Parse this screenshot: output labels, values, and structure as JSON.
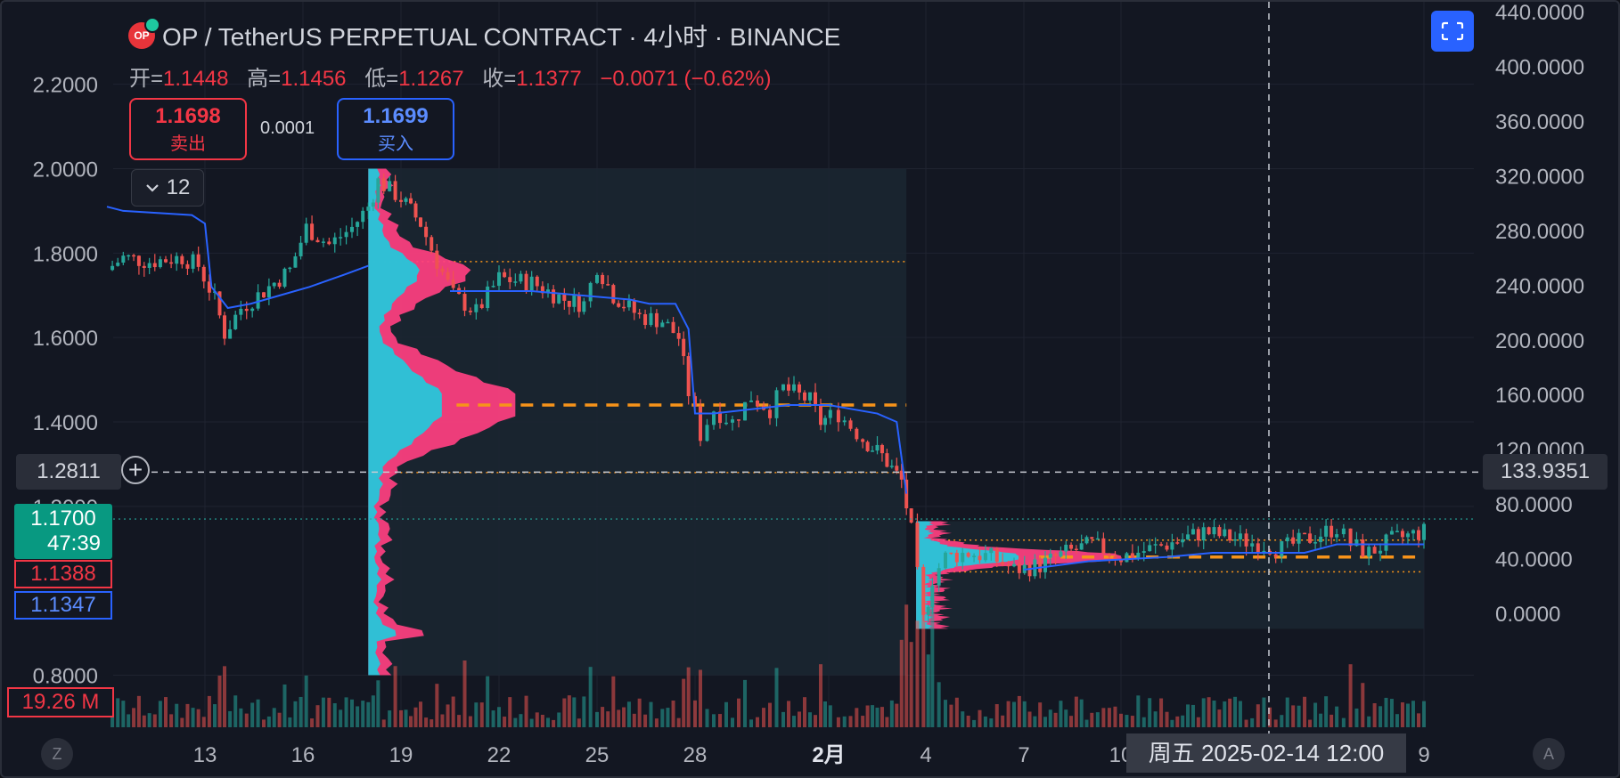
{
  "header": {
    "logo_text": "OP",
    "title": "OP / TetherUS PERPETUAL CONTRACT · 4小时 · BINANCE"
  },
  "ohlc": {
    "open_label": "开=",
    "open": "1.1448",
    "high_label": "高=",
    "high": "1.1456",
    "low_label": "低=",
    "low": "1.1267",
    "close_label": "收=",
    "close": "1.1377",
    "change": "−0.0071 (−0.62%)"
  },
  "trade": {
    "sell_price": "1.1698",
    "sell_label": "卖出",
    "spread": "0.0001",
    "buy_price": "1.1699",
    "buy_label": "买入"
  },
  "indicators_collapse": {
    "count": "12",
    "icon": "chevron-down-icon"
  },
  "fullscreen": {
    "icon": "screenshot-icon"
  },
  "crosshair": {
    "price": "1.2811",
    "right_value": "133.9351",
    "date": "周五 2025-02-14   12:00"
  },
  "price_tags": {
    "last_price": "1.1700",
    "countdown": "47:39",
    "ask": "1.1388",
    "bid": "1.1347",
    "volume": "19.26 M"
  },
  "footer": {
    "left_button": "Z",
    "right_button": "A"
  },
  "colors": {
    "background": "#131722",
    "up": "#26a69a",
    "down": "#ef5350",
    "vwap": "#2962ff",
    "poc": "#f7931a",
    "vp_up": "#26c6da",
    "vp_down": "#ff4081"
  },
  "chart_data": {
    "type": "candlestick",
    "title": "OP / TetherUS PERPETUAL CONTRACT · 4小时 · BINANCE",
    "left_axis": {
      "ticks": [
        "2.2000",
        "2.0000",
        "1.8000",
        "1.6000",
        "1.4000",
        "1.2000",
        "0.8000"
      ],
      "values": [
        2.2,
        2.0,
        1.8,
        1.6,
        1.4,
        1.2,
        0.8
      ],
      "range": [
        0.8,
        2.2
      ]
    },
    "right_axis": {
      "ticks": [
        "440.0000",
        "400.0000",
        "360.0000",
        "320.0000",
        "280.0000",
        "240.0000",
        "200.0000",
        "160.0000",
        "120.0000",
        "80.0000",
        "40.0000",
        "0.0000"
      ],
      "values": [
        440,
        400,
        360,
        320,
        280,
        240,
        200,
        160,
        120,
        80,
        40,
        0
      ]
    },
    "x_labels": [
      "13",
      "16",
      "19",
      "22",
      "25",
      "28",
      "2月",
      "4",
      "7",
      "10",
      "9"
    ],
    "price_path": [
      {
        "day": 10.0,
        "price": 1.76
      },
      {
        "day": 10.5,
        "price": 1.79
      },
      {
        "day": 11.3,
        "price": 1.78
      },
      {
        "day": 12.3,
        "price": 1.79
      },
      {
        "day": 12.8,
        "price": 1.77
      },
      {
        "day": 13.3,
        "price": 1.69
      },
      {
        "day": 13.6,
        "price": 1.61
      },
      {
        "day": 14.1,
        "price": 1.67
      },
      {
        "day": 14.8,
        "price": 1.71
      },
      {
        "day": 15.6,
        "price": 1.76
      },
      {
        "day": 16.1,
        "price": 1.86
      },
      {
        "day": 16.8,
        "price": 1.82
      },
      {
        "day": 17.5,
        "price": 1.86
      },
      {
        "day": 18.0,
        "price": 1.91
      },
      {
        "day": 18.3,
        "price": 1.97
      },
      {
        "day": 19.0,
        "price": 1.93
      },
      {
        "day": 19.6,
        "price": 1.87
      },
      {
        "day": 20.1,
        "price": 1.78
      },
      {
        "day": 20.6,
        "price": 1.7
      },
      {
        "day": 21.3,
        "price": 1.66
      },
      {
        "day": 22.0,
        "price": 1.74
      },
      {
        "day": 23.0,
        "price": 1.73
      },
      {
        "day": 24.0,
        "price": 1.69
      },
      {
        "day": 24.6,
        "price": 1.68
      },
      {
        "day": 25.0,
        "price": 1.77
      },
      {
        "day": 25.5,
        "price": 1.7
      },
      {
        "day": 26.3,
        "price": 1.65
      },
      {
        "day": 27.0,
        "price": 1.64
      },
      {
        "day": 27.5,
        "price": 1.6
      },
      {
        "day": 27.8,
        "price": 1.47
      },
      {
        "day": 28.2,
        "price": 1.37
      },
      {
        "day": 28.7,
        "price": 1.43
      },
      {
        "day": 29.4,
        "price": 1.4
      },
      {
        "day": 30.1,
        "price": 1.46
      },
      {
        "day": 30.8,
        "price": 1.43
      },
      {
        "day": 31.3,
        "price": 1.48
      },
      {
        "day": 32.3,
        "price": 1.45
      },
      {
        "day": 32.7,
        "price": 1.4
      },
      {
        "day": 33.2,
        "price": 1.42
      },
      {
        "day": 33.7,
        "price": 1.36
      },
      {
        "day": 34.1,
        "price": 1.32
      },
      {
        "day": 34.5,
        "price": 1.26
      },
      {
        "day": 34.7,
        "price": 1.14
      },
      {
        "day": 34.95,
        "price": 0.93
      },
      {
        "day": 35.2,
        "price": 1.03
      },
      {
        "day": 35.6,
        "price": 1.08
      },
      {
        "day": 36.3,
        "price": 1.09
      },
      {
        "day": 37.0,
        "price": 1.08
      },
      {
        "day": 37.7,
        "price": 1.05
      },
      {
        "day": 38.5,
        "price": 1.06
      },
      {
        "day": 39.3,
        "price": 1.09
      },
      {
        "day": 40.1,
        "price": 1.11
      },
      {
        "day": 41.0,
        "price": 1.08
      },
      {
        "day": 42.0,
        "price": 1.11
      },
      {
        "day": 42.8,
        "price": 1.14
      },
      {
        "day": 43.6,
        "price": 1.12
      },
      {
        "day": 44.5,
        "price": 1.1
      },
      {
        "day": 45.0,
        "price": 1.12
      },
      {
        "day": 45.7,
        "price": 1.15
      },
      {
        "day": 46.0,
        "price": 1.11
      },
      {
        "day": 46.4,
        "price": 1.09
      },
      {
        "day": 46.9,
        "price": 1.12
      },
      {
        "day": 47.6,
        "price": 1.14
      }
    ],
    "vwap_segments": [
      [
        {
          "day": 10.0,
          "price": 1.91
        },
        {
          "day": 10.5,
          "price": 1.9
        },
        {
          "day": 12.6,
          "price": 1.89
        },
        {
          "day": 13.0,
          "price": 1.87
        },
        {
          "day": 13.2,
          "price": 1.72
        },
        {
          "day": 13.7,
          "price": 1.67
        },
        {
          "day": 14.4,
          "price": 1.68
        },
        {
          "day": 15.3,
          "price": 1.7
        },
        {
          "day": 16.2,
          "price": 1.72
        },
        {
          "day": 17.3,
          "price": 1.75
        },
        {
          "day": 18.0,
          "price": 1.77
        }
      ],
      [
        {
          "day": 20.5,
          "price": 1.71
        },
        {
          "day": 23.0,
          "price": 1.71
        },
        {
          "day": 26.0,
          "price": 1.69
        },
        {
          "day": 26.6,
          "price": 1.68
        },
        {
          "day": 27.4,
          "price": 1.68
        },
        {
          "day": 27.8,
          "price": 1.62
        },
        {
          "day": 28.0,
          "price": 1.42
        },
        {
          "day": 28.7,
          "price": 1.42
        },
        {
          "day": 31.5,
          "price": 1.44
        },
        {
          "day": 33.0,
          "price": 1.44
        },
        {
          "day": 34.0,
          "price": 1.42
        },
        {
          "day": 34.4,
          "price": 1.4
        },
        {
          "day": 34.6,
          "price": 1.23
        }
      ],
      [
        {
          "day": 38.0,
          "price": 1.05
        },
        {
          "day": 40.0,
          "price": 1.07
        },
        {
          "day": 42.0,
          "price": 1.08
        },
        {
          "day": 43.0,
          "price": 1.09
        },
        {
          "day": 45.0,
          "price": 1.09
        },
        {
          "day": 45.7,
          "price": 1.11
        },
        {
          "day": 47.6,
          "price": 1.11
        }
      ]
    ],
    "volume_profiles": [
      {
        "day_start": 18.0,
        "day_end": 34.6,
        "price_low": 0.8,
        "price_high": 2.0,
        "poc_price": 1.44,
        "value_area_high": 1.78,
        "value_area_low": 1.28
      },
      {
        "day_start": 34.8,
        "day_end": 47.6,
        "price_low": 0.91,
        "price_high": 1.165,
        "poc_price": 1.08,
        "value_area_high": 1.12,
        "value_area_low": 1.045
      }
    ],
    "ask_price": 1.17,
    "crosshair_price": 1.2811,
    "legend": "none",
    "grid": true
  }
}
